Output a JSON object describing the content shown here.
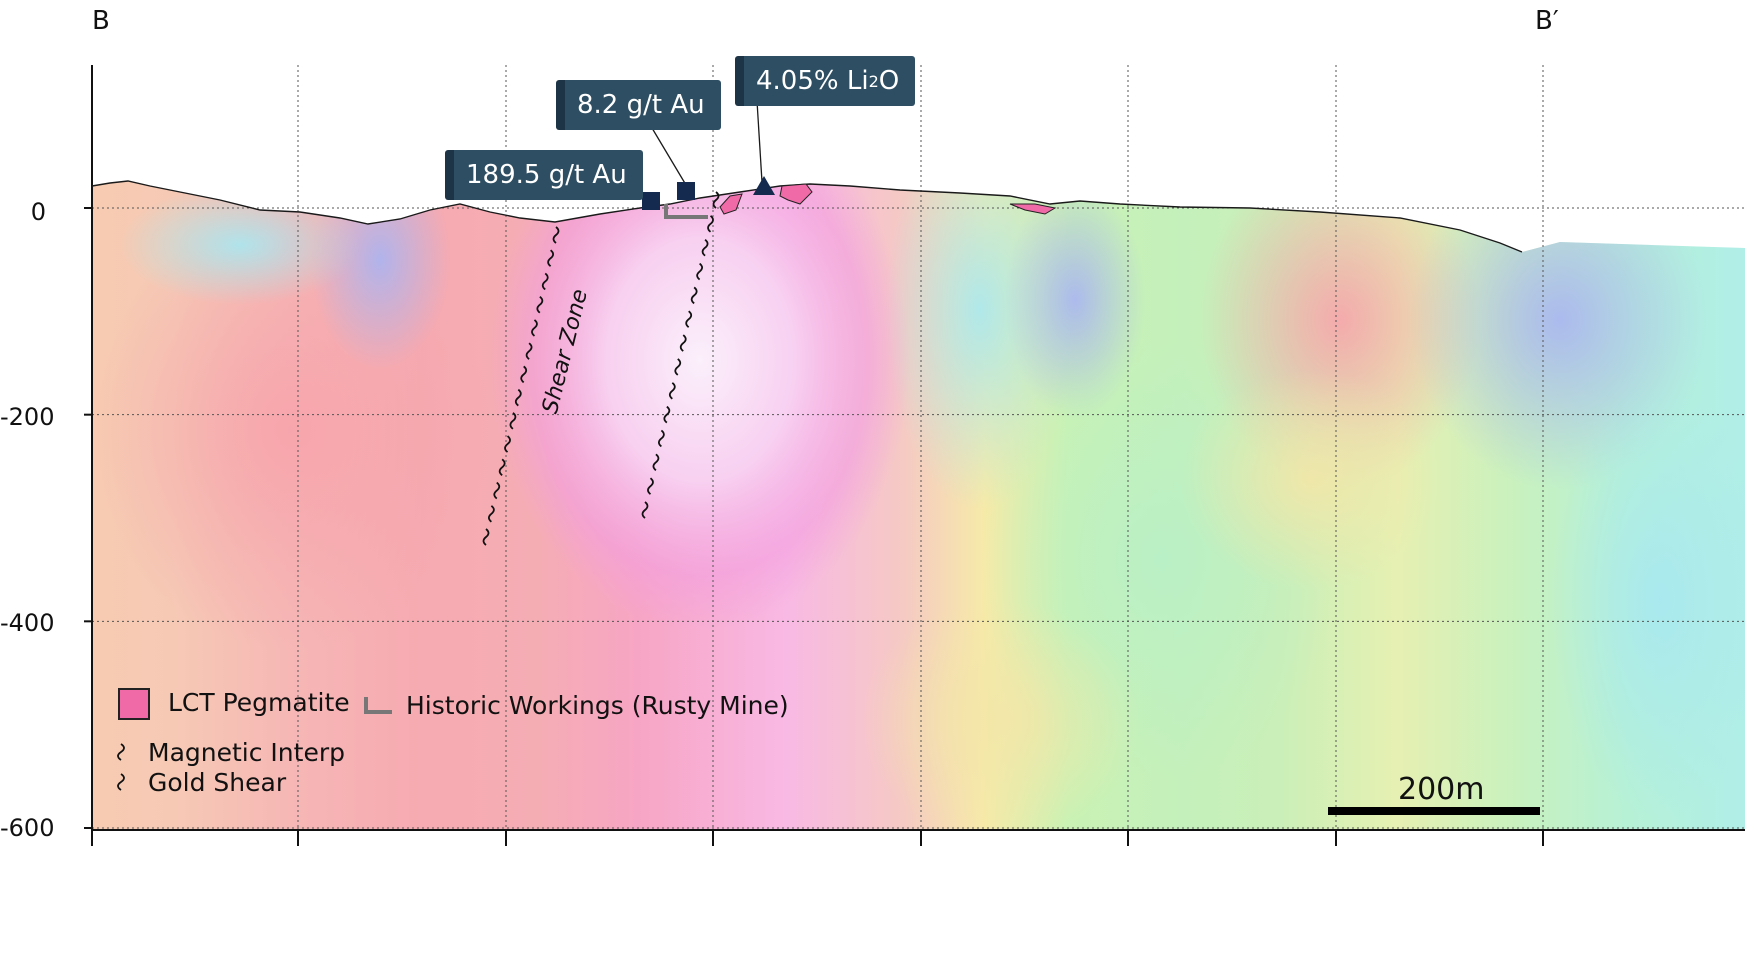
{
  "section": {
    "start_label": "B",
    "end_label": "B′"
  },
  "axis": {
    "y_ticks": [
      "0",
      "-200",
      "-400",
      "-600"
    ],
    "y_values": [
      0,
      -200,
      -400,
      -600
    ]
  },
  "callouts": [
    {
      "id": "callout-gold-high",
      "text": "189.5 g/t Au",
      "marker": "square"
    },
    {
      "id": "callout-gold-low",
      "text": "8.2 g/t Au",
      "marker": "square"
    },
    {
      "id": "callout-lithium",
      "text_main": "4.05% Li",
      "text_sub": "2",
      "text_tail": "O",
      "marker": "triangle"
    }
  ],
  "annotations": {
    "shear_zone": "Shear Zone"
  },
  "legend": {
    "pegmatite": "LCT Pegmatite",
    "workings": "Historic Workings (Rusty Mine)",
    "magnetic": "Magnetic Interp",
    "gold_shear": "Gold Shear"
  },
  "scale_bar": {
    "label": "200m"
  },
  "colors": {
    "callout_bg": "#2e4f63",
    "marker": "#142a4f",
    "pegmatite": "#f06aa8",
    "workings": "#777777"
  }
}
